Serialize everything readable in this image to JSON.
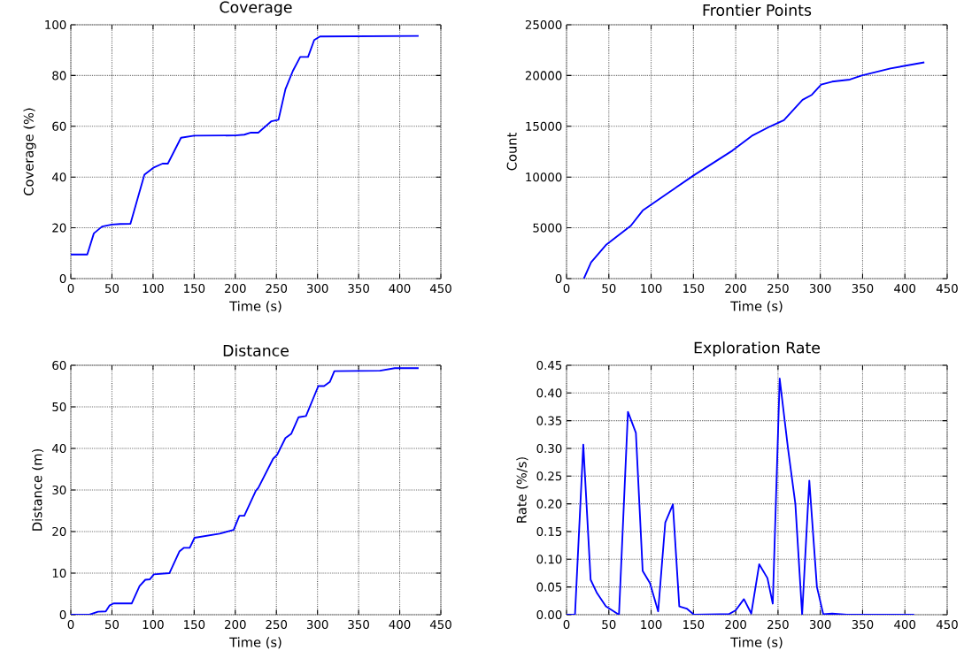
{
  "chart_data": [
    {
      "type": "line",
      "title": "Coverage",
      "xlabel": "Time (s)",
      "ylabel": "Coverage (%)",
      "color": "#0000ff",
      "grid": true,
      "x": [
        0,
        20,
        28,
        38,
        50,
        60,
        72.5,
        89.5,
        101,
        111.5,
        118,
        134,
        150,
        200,
        211,
        219,
        228,
        244,
        252.6,
        261,
        270,
        279,
        288.5,
        296,
        303,
        423
      ],
      "values": [
        9.5,
        9.5,
        17.8,
        20.5,
        21.3,
        21.5,
        21.6,
        40.9,
        43.8,
        45.3,
        45.3,
        55.5,
        56.3,
        56.4,
        56.7,
        57.5,
        57.5,
        62,
        62.6,
        74.6,
        81.8,
        87.3,
        87.3,
        94,
        95.4,
        95.6
      ],
      "xlim": [
        0,
        450
      ],
      "ylim": [
        0,
        100
      ],
      "xticks": [
        0,
        50,
        100,
        150,
        200,
        250,
        300,
        350,
        400,
        450
      ],
      "yticks": [
        0,
        20,
        40,
        60,
        80,
        100
      ]
    },
    {
      "type": "line",
      "title": "Frontier Points",
      "xlabel": "Time (s)",
      "ylabel": "Count",
      "color": "#0000ff",
      "grid": true,
      "x": [
        20.5,
        29,
        46.5,
        76,
        90,
        123,
        151,
        196,
        220,
        241,
        257,
        279,
        290,
        301,
        314,
        335,
        349,
        383,
        423
      ],
      "values": [
        0,
        1600,
        3300,
        5200,
        6700,
        8600,
        10200,
        12600,
        14100,
        15000,
        15600,
        17600,
        18100,
        19100,
        19400,
        19600,
        20000,
        20700,
        21300
      ],
      "xlim": [
        0,
        450
      ],
      "ylim": [
        0,
        25000
      ],
      "xticks": [
        0,
        50,
        100,
        150,
        200,
        250,
        300,
        350,
        400,
        450
      ],
      "yticks": [
        0,
        5000,
        10000,
        15000,
        20000,
        25000
      ]
    },
    {
      "type": "line",
      "title": "Distance",
      "xlabel": "Time (s)",
      "ylabel": "Distance (m)",
      "color": "#0000ff",
      "grid": true,
      "x": [
        0,
        22.6,
        33,
        42.5,
        47,
        52,
        74,
        83.6,
        90.6,
        96,
        101,
        120,
        132,
        137.6,
        144.6,
        150.5,
        181,
        198,
        205,
        211,
        225,
        228,
        246,
        251,
        261,
        268,
        277,
        286,
        301,
        308,
        315,
        320.5,
        376,
        394,
        423
      ],
      "values": [
        0,
        0,
        0.7,
        0.8,
        2.2,
        2.7,
        2.7,
        6.9,
        8.4,
        8.5,
        9.7,
        10,
        15.2,
        16.1,
        16.1,
        18.5,
        19.5,
        20.4,
        23.8,
        23.8,
        29.8,
        30.5,
        37.5,
        38.5,
        42.5,
        43.5,
        47.5,
        47.8,
        55,
        55,
        56,
        58.6,
        58.7,
        59.3,
        59.3
      ],
      "xlim": [
        0,
        450
      ],
      "ylim": [
        0,
        60
      ],
      "xticks": [
        0,
        50,
        100,
        150,
        200,
        250,
        300,
        350,
        400,
        450
      ],
      "yticks": [
        0,
        10,
        20,
        30,
        40,
        50,
        60
      ]
    },
    {
      "type": "line",
      "title": "Exploration Rate",
      "xlabel": "Time (s)",
      "ylabel": "Rate (%/s)",
      "color": "#0000ff",
      "grid": true,
      "x": [
        0,
        10,
        19.8,
        28.5,
        36,
        46.5,
        62,
        72.6,
        82,
        90,
        98.6,
        108.3,
        116.7,
        125.7,
        133.3,
        142,
        150.7,
        182,
        192,
        200,
        209.7,
        218.4,
        227.8,
        237.5,
        243.8,
        252,
        261.8,
        270.5,
        278.5,
        287,
        296,
        303.5,
        314,
        331,
        411
      ],
      "values": [
        0,
        0,
        0.307,
        0.063,
        0.039,
        0.015,
        0,
        0.366,
        0.328,
        0.079,
        0.057,
        0.006,
        0.166,
        0.199,
        0.015,
        0.011,
        0,
        0.001,
        0.001,
        0.008,
        0.028,
        0.002,
        0.091,
        0.066,
        0.02,
        0.426,
        0.3,
        0.2,
        0,
        0.242,
        0.05,
        0.001,
        0.002,
        0,
        0
      ],
      "xlim": [
        0,
        450
      ],
      "ylim": [
        0,
        0.45
      ],
      "xticks": [
        0,
        50,
        100,
        150,
        200,
        250,
        300,
        350,
        400,
        450
      ],
      "yticks": [
        {
          "value": 0,
          "label": "0.00"
        },
        {
          "value": 0.05,
          "label": "0.05"
        },
        {
          "value": 0.1,
          "label": "0.10"
        },
        {
          "value": 0.15,
          "label": "0.15"
        },
        {
          "value": 0.2,
          "label": "0.20"
        },
        {
          "value": 0.25,
          "label": "0.25"
        },
        {
          "value": 0.3,
          "label": "0.30"
        },
        {
          "value": 0.35,
          "label": "0.35"
        },
        {
          "value": 0.4,
          "label": "0.40"
        },
        {
          "value": 0.45,
          "label": "0.45"
        }
      ]
    }
  ]
}
